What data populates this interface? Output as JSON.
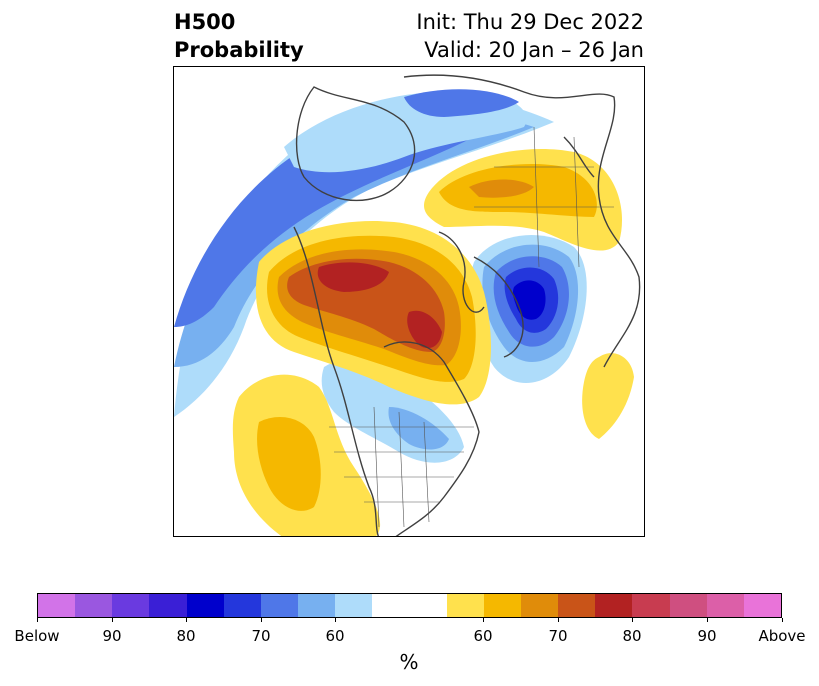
{
  "header": {
    "title_line1": "H500",
    "title_line2": "Probability",
    "init_text": "Init: Thu 29 Dec 2022",
    "valid_text": "Valid: 20 Jan – 26 Jan"
  },
  "colorbar": {
    "unit": "%",
    "tick_labels": [
      "Below",
      "90",
      "80",
      "70",
      "60",
      "60",
      "70",
      "80",
      "90",
      "Above"
    ],
    "colors": [
      "#d273e8",
      "#9a57e0",
      "#6a3ae0",
      "#3a1fd6",
      "#0000cc",
      "#2437dc",
      "#4f77e8",
      "#77b0f0",
      "#aedcfa",
      "#ffffff",
      "#ffe14d",
      "#f5b800",
      "#e08c0a",
      "#c95418",
      "#b22222",
      "#c83c50",
      "#cf4f80",
      "#dc5fa8",
      "#e973d9"
    ]
  }
}
